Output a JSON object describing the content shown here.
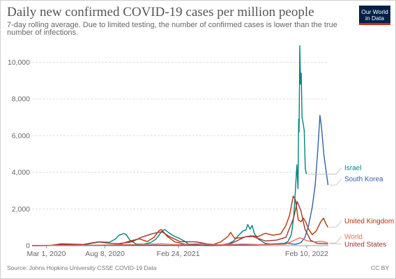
{
  "title": "Daily new confirmed COVID-19 cases per million people",
  "subtitle": "7-day rolling average. Due to limited testing, the number of confirmed cases is lower than the true number of infections.",
  "logo": {
    "line1": "Our World",
    "line2": "in Data",
    "bg_color": "#002147",
    "accent_color": "#ce261e"
  },
  "footer": {
    "source": "Source: Johns Hopkins University CSSE COVID-19 Data",
    "license": "CC BY"
  },
  "chart_data": {
    "type": "line",
    "x_type": "date",
    "x_range": [
      "2020-01-22",
      "2022-04-10"
    ],
    "x_ticks": [
      {
        "date": "2020-03-01",
        "label": "Mar 1, 2020"
      },
      {
        "date": "2020-08-08",
        "label": "Aug 8, 2020"
      },
      {
        "date": "2021-02-24",
        "label": "Feb 24, 2021"
      },
      {
        "date": "2022-02-10",
        "label": "Feb 10, 2022"
      }
    ],
    "ylim": [
      0,
      11000
    ],
    "y_ticks": [
      0,
      2000,
      4000,
      6000,
      8000,
      10000
    ],
    "y_tick_labels": [
      "0",
      "2,000",
      "4,000",
      "6,000",
      "8,000",
      "10,000"
    ],
    "grid": "horizontal dashed",
    "legend": "right, labels at line ends",
    "series": [
      {
        "name": "Israel",
        "color": "#00847e",
        "points": [
          [
            "2020-01-22",
            0
          ],
          [
            "2020-03-10",
            5
          ],
          [
            "2020-04-02",
            60
          ],
          [
            "2020-04-20",
            20
          ],
          [
            "2020-05-15",
            5
          ],
          [
            "2020-06-15",
            40
          ],
          [
            "2020-07-01",
            120
          ],
          [
            "2020-07-25",
            200
          ],
          [
            "2020-08-20",
            180
          ],
          [
            "2020-09-05",
            350
          ],
          [
            "2020-09-15",
            560
          ],
          [
            "2020-09-28",
            660
          ],
          [
            "2020-10-05",
            600
          ],
          [
            "2020-10-15",
            300
          ],
          [
            "2020-11-01",
            90
          ],
          [
            "2020-11-20",
            80
          ],
          [
            "2020-12-10",
            160
          ],
          [
            "2020-12-25",
            350
          ],
          [
            "2021-01-10",
            770
          ],
          [
            "2021-01-18",
            880
          ],
          [
            "2021-01-28",
            720
          ],
          [
            "2021-02-10",
            550
          ],
          [
            "2021-02-24",
            420
          ],
          [
            "2021-03-10",
            280
          ],
          [
            "2021-03-25",
            80
          ],
          [
            "2021-04-10",
            20
          ],
          [
            "2021-05-15",
            5
          ],
          [
            "2021-06-20",
            8
          ],
          [
            "2021-07-10",
            80
          ],
          [
            "2021-07-25",
            250
          ],
          [
            "2021-08-05",
            500
          ],
          [
            "2021-08-20",
            800
          ],
          [
            "2021-08-28",
            850
          ],
          [
            "2021-09-02",
            1150
          ],
          [
            "2021-09-08",
            900
          ],
          [
            "2021-09-14",
            1100
          ],
          [
            "2021-09-20",
            650
          ],
          [
            "2021-10-01",
            350
          ],
          [
            "2021-10-20",
            120
          ],
          [
            "2021-11-10",
            70
          ],
          [
            "2021-12-05",
            80
          ],
          [
            "2021-12-20",
            200
          ],
          [
            "2021-12-30",
            600
          ],
          [
            "2022-01-05",
            1500
          ],
          [
            "2022-01-10",
            3000
          ],
          [
            "2022-01-14",
            4400
          ],
          [
            "2022-01-17",
            3100
          ],
          [
            "2022-01-19",
            6900
          ],
          [
            "2022-01-20",
            6200
          ],
          [
            "2022-01-22",
            10900
          ],
          [
            "2022-01-24",
            8800
          ],
          [
            "2022-01-26",
            9400
          ],
          [
            "2022-01-28",
            7000
          ],
          [
            "2022-01-30",
            6800
          ],
          [
            "2022-02-03",
            6300
          ],
          [
            "2022-02-06",
            4200
          ],
          [
            "2022-02-09",
            3900
          ]
        ]
      },
      {
        "name": "United Kingdom",
        "color": "#b13507",
        "points": [
          [
            "2020-01-22",
            0
          ],
          [
            "2020-03-15",
            20
          ],
          [
            "2020-04-10",
            70
          ],
          [
            "2020-05-15",
            40
          ],
          [
            "2020-07-01",
            10
          ],
          [
            "2020-08-15",
            15
          ],
          [
            "2020-09-15",
            60
          ],
          [
            "2020-10-15",
            250
          ],
          [
            "2020-11-10",
            370
          ],
          [
            "2020-12-01",
            220
          ],
          [
            "2020-12-20",
            450
          ],
          [
            "2021-01-02",
            800
          ],
          [
            "2021-01-09",
            880
          ],
          [
            "2021-01-25",
            500
          ],
          [
            "2021-02-15",
            200
          ],
          [
            "2021-03-15",
            80
          ],
          [
            "2021-05-01",
            30
          ],
          [
            "2021-06-01",
            70
          ],
          [
            "2021-06-20",
            200
          ],
          [
            "2021-07-10",
            500
          ],
          [
            "2021-07-17",
            720
          ],
          [
            "2021-07-28",
            400
          ],
          [
            "2021-08-15",
            430
          ],
          [
            "2021-09-10",
            530
          ],
          [
            "2021-10-01",
            500
          ],
          [
            "2021-10-20",
            670
          ],
          [
            "2021-11-10",
            560
          ],
          [
            "2021-12-01",
            640
          ],
          [
            "2021-12-15",
            1100
          ],
          [
            "2021-12-25",
            1650
          ],
          [
            "2022-01-04",
            2700
          ],
          [
            "2022-01-10",
            2500
          ],
          [
            "2022-01-18",
            1400
          ],
          [
            "2022-01-25",
            1300
          ],
          [
            "2022-02-01",
            1500
          ],
          [
            "2022-02-07",
            1300
          ],
          [
            "2022-02-15",
            900
          ],
          [
            "2022-02-25",
            600
          ],
          [
            "2022-03-08",
            800
          ],
          [
            "2022-03-20",
            1300
          ],
          [
            "2022-03-28",
            1500
          ],
          [
            "2022-04-03",
            1200
          ],
          [
            "2022-04-09",
            1000
          ]
        ]
      },
      {
        "name": "South Korea",
        "color": "#3360a9",
        "points": [
          [
            "2020-01-22",
            0
          ],
          [
            "2020-02-25",
            5
          ],
          [
            "2020-03-05",
            12
          ],
          [
            "2020-04-01",
            2
          ],
          [
            "2020-08-28",
            6
          ],
          [
            "2020-12-25",
            20
          ],
          [
            "2021-02-01",
            8
          ],
          [
            "2021-07-25",
            30
          ],
          [
            "2021-09-25",
            45
          ],
          [
            "2021-12-15",
            130
          ],
          [
            "2022-01-10",
            70
          ],
          [
            "2022-01-25",
            160
          ],
          [
            "2022-02-05",
            450
          ],
          [
            "2022-02-15",
            1100
          ],
          [
            "2022-02-25",
            2100
          ],
          [
            "2022-03-05",
            3300
          ],
          [
            "2022-03-12",
            5200
          ],
          [
            "2022-03-18",
            7100
          ],
          [
            "2022-03-22",
            6500
          ],
          [
            "2022-03-29",
            4900
          ],
          [
            "2022-04-09",
            3300
          ]
        ]
      },
      {
        "name": "United States",
        "color": "#9a3334",
        "points": [
          [
            "2020-01-22",
            0
          ],
          [
            "2020-03-15",
            10
          ],
          [
            "2020-04-10",
            95
          ],
          [
            "2020-05-15",
            75
          ],
          [
            "2020-06-10",
            65
          ],
          [
            "2020-07-20",
            200
          ],
          [
            "2020-08-20",
            130
          ],
          [
            "2020-09-15",
            105
          ],
          [
            "2020-10-20",
            200
          ],
          [
            "2020-11-15",
            450
          ],
          [
            "2020-12-15",
            650
          ],
          [
            "2021-01-10",
            760
          ],
          [
            "2021-02-01",
            480
          ],
          [
            "2021-03-01",
            220
          ],
          [
            "2021-04-15",
            200
          ],
          [
            "2021-05-15",
            90
          ],
          [
            "2021-06-20",
            35
          ],
          [
            "2021-07-20",
            130
          ],
          [
            "2021-08-25",
            470
          ],
          [
            "2021-09-15",
            500
          ],
          [
            "2021-10-20",
            250
          ],
          [
            "2021-11-20",
            300
          ],
          [
            "2021-12-15",
            450
          ],
          [
            "2022-01-05",
            1500
          ],
          [
            "2022-01-15",
            2400
          ],
          [
            "2022-01-25",
            1900
          ],
          [
            "2022-02-05",
            900
          ],
          [
            "2022-02-20",
            300
          ],
          [
            "2022-03-10",
            120
          ],
          [
            "2022-04-09",
            90
          ]
        ]
      },
      {
        "name": "World",
        "color": "#e56e5a",
        "points": [
          [
            "2020-01-22",
            0
          ],
          [
            "2020-04-10",
            10
          ],
          [
            "2020-07-20",
            30
          ],
          [
            "2020-10-25",
            60
          ],
          [
            "2021-01-10",
            95
          ],
          [
            "2021-02-20",
            50
          ],
          [
            "2021-04-25",
            105
          ],
          [
            "2021-06-15",
            45
          ],
          [
            "2021-08-20",
            85
          ],
          [
            "2021-10-15",
            50
          ],
          [
            "2021-12-15",
            80
          ],
          [
            "2022-01-22",
            430
          ],
          [
            "2022-02-10",
            270
          ],
          [
            "2022-03-01",
            200
          ],
          [
            "2022-03-22",
            230
          ],
          [
            "2022-04-09",
            150
          ]
        ]
      }
    ]
  }
}
